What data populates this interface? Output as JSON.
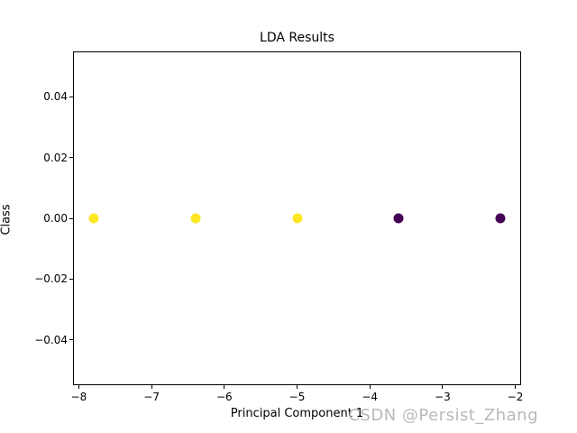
{
  "chart_data": {
    "type": "scatter",
    "title": "LDA Results",
    "xlabel": "Principal Component 1",
    "ylabel": "Class",
    "xlim": [
      -8.08,
      -1.92
    ],
    "ylim": [
      -0.055,
      0.055
    ],
    "grid": false,
    "legend": "none",
    "colormap": "viridis",
    "x_ticks": [
      {
        "value": -8,
        "label": "−8"
      },
      {
        "value": -7,
        "label": "−7"
      },
      {
        "value": -6,
        "label": "−6"
      },
      {
        "value": -5,
        "label": "−5"
      },
      {
        "value": -4,
        "label": "−4"
      },
      {
        "value": -3,
        "label": "−3"
      },
      {
        "value": -2,
        "label": "−2"
      }
    ],
    "y_ticks": [
      {
        "value": 0.04,
        "label": "0.04"
      },
      {
        "value": 0.02,
        "label": "0.02"
      },
      {
        "value": 0.0,
        "label": "0.00"
      },
      {
        "value": -0.02,
        "label": "−0.02"
      },
      {
        "value": -0.04,
        "label": "−0.04"
      }
    ],
    "points": [
      {
        "x": -7.8,
        "y": 0.0,
        "color": "#fde725"
      },
      {
        "x": -6.4,
        "y": 0.0,
        "color": "#fde725"
      },
      {
        "x": -5.0,
        "y": 0.0,
        "color": "#fde725"
      },
      {
        "x": -3.6,
        "y": 0.0,
        "color": "#440154"
      },
      {
        "x": -2.2,
        "y": 0.0,
        "color": "#440154"
      }
    ]
  },
  "watermark": {
    "text": "CSDN @Persist_Zhang",
    "color": "#b9b9b9"
  }
}
